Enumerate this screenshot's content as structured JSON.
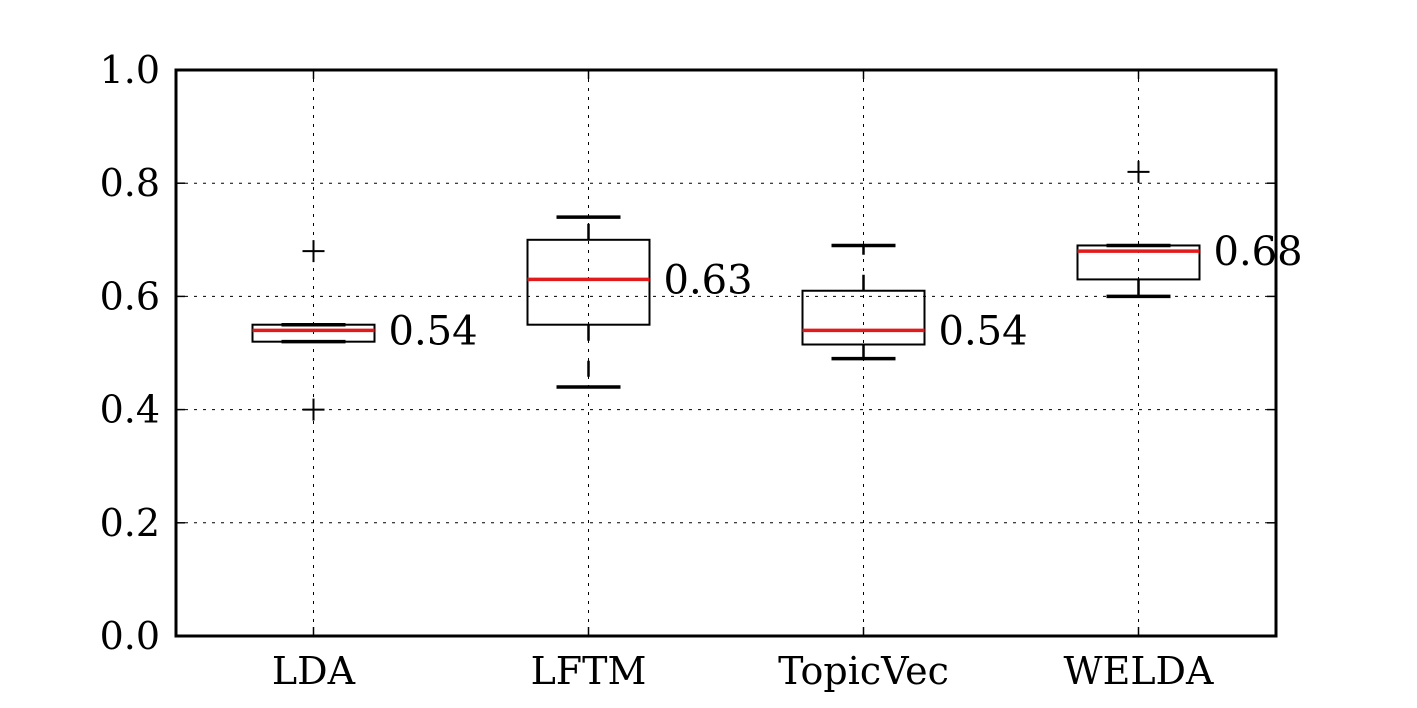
{
  "chart_data": {
    "type": "box",
    "title": "",
    "xlabel": "",
    "ylabel": "",
    "ylim": [
      0.0,
      1.0
    ],
    "yticks": [
      "0.0",
      "0.2",
      "0.4",
      "0.6",
      "0.8",
      "1.0"
    ],
    "ytick_values": [
      0.0,
      0.2,
      0.4,
      0.6,
      0.8,
      1.0
    ],
    "grid": true,
    "categories": [
      "LDA",
      "LFTM",
      "TopicVec",
      "WELDA"
    ],
    "series": [
      {
        "whisker_low": 0.52,
        "q1": 0.52,
        "median": 0.54,
        "q3": 0.55,
        "whisker_high": 0.55,
        "median_label": "0.54",
        "fliers": [
          0.68,
          0.4
        ]
      },
      {
        "whisker_low": 0.44,
        "q1": 0.55,
        "median": 0.63,
        "q3": 0.7,
        "whisker_high": 0.74,
        "median_label": "0.63",
        "fliers": []
      },
      {
        "whisker_low": 0.49,
        "q1": 0.515,
        "median": 0.54,
        "q3": 0.61,
        "whisker_high": 0.69,
        "median_label": "0.54",
        "fliers": []
      },
      {
        "whisker_low": 0.6,
        "q1": 0.63,
        "median": 0.68,
        "q3": 0.69,
        "whisker_high": 0.69,
        "median_label": "0.68",
        "fliers": [
          0.82
        ]
      }
    ],
    "colors": {
      "median": "#e31a1c",
      "box": "#000000",
      "background": "#ffffff"
    }
  }
}
